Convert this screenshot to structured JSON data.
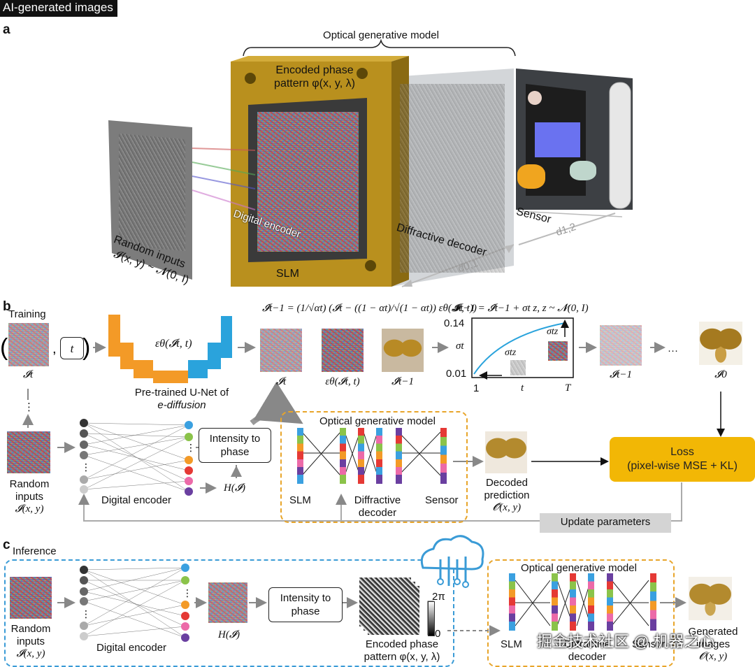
{
  "header": {
    "tag": "AI-generated images"
  },
  "panel_a": {
    "letter": "a",
    "model_title": "Optical generative model",
    "phase_pattern_line1": "Encoded phase",
    "phase_pattern_line2": "pattern φ(x, y, λ)",
    "random_inputs_line1": "Random inputs",
    "random_inputs_line2": "𝓘(x, y) ~ 𝓝(0, I)",
    "digital_encoder": "Digital encoder",
    "slm": "SLM",
    "diffractive_decoder": "Diffractive decoder",
    "sensor": "Sensor",
    "d01": "d0,1",
    "d12": "d1,2"
  },
  "panel_b": {
    "letter": "b",
    "training": "Training",
    "It": "𝓘t",
    "t_box": "t",
    "eps_label": "εθ(𝓘t, t)",
    "unet_line1": "Pre-trained U-Net of",
    "unet_line2": "e-diffusion",
    "formula1": "𝓘̂t−1 = (1/√αt) (𝓘t − ((1 − αt)/√(1 − αt)) εθ(𝓘t, t))",
    "sub_It": "𝓘t",
    "sub_eps": "εθ(𝓘t, t)",
    "sub_Ihat": "𝓘̂t−1",
    "formula2": "𝓘t−1 = 𝓘̂t−1 + σt z,  z ~ 𝓝(0, I)",
    "sigma": "σt",
    "sigma_z": "σtz",
    "y_top": "0.14",
    "y_bot": "0.01",
    "x_1": "1",
    "x_t": "t",
    "x_T": "T",
    "It_1": "𝓘t−1",
    "ellipsis": "···",
    "I0": "𝓘0",
    "random_line1": "Random",
    "random_line2": "inputs",
    "random_line3": "𝓘(x, y)",
    "digital_encoder": "Digital encoder",
    "intensity_line1": "Intensity to",
    "intensity_line2": "phase",
    "H": "H(𝓘)",
    "ogm": "Optical generative model",
    "slm": "SLM",
    "diff_line1": "Diffractive",
    "diff_line2": "decoder",
    "sensor": "Sensor",
    "decoded_line1": "Decoded",
    "decoded_line2": "prediction",
    "decoded_line3": "𝓞̂(x, y)",
    "loss_line1": "Loss",
    "loss_line2": "(pixel-wise MSE + KL)",
    "update": "Update parameters"
  },
  "panel_c": {
    "letter": "c",
    "inference": "Inference",
    "random_line1": "Random",
    "random_line2": "inputs",
    "random_line3": "𝓘(x, y)",
    "digital_encoder": "Digital encoder",
    "H": "H(𝓘)",
    "intensity_line1": "Intensity to",
    "intensity_line2": "phase",
    "two_pi": "2π",
    "zero": "0",
    "encoded_line1": "Encoded phase",
    "encoded_line2": "pattern φ(x, y, λ)",
    "ogm": "Optical generative model",
    "slm": "SLM",
    "diff_line1": "Diffractive",
    "diff_line2": "decoder",
    "sensor": "Sensor",
    "gen_line1": "Generated",
    "gen_line2": "images",
    "gen_line3": "𝓞(x, y)",
    "watermark": "掘金技术社区 @ 机器之心"
  },
  "colors": {
    "loss": "#f2b705",
    "orange_dash": "#e8a52a",
    "blue_dash": "#3a9bd6",
    "unet_orange": "#f39a27",
    "unet_blue": "#2aa3dc"
  }
}
